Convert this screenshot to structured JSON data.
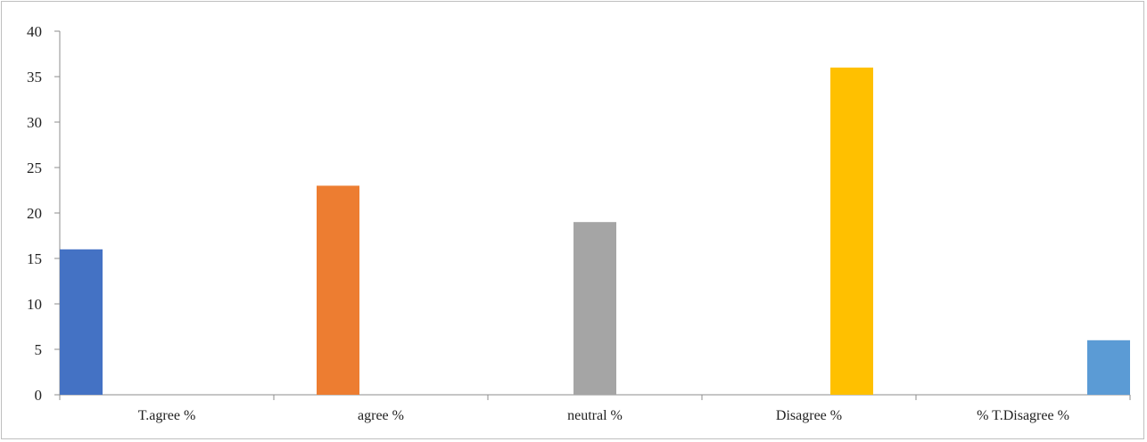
{
  "chart_data": {
    "type": "bar",
    "title": "",
    "xlabel": "",
    "ylabel": "",
    "ylim": [
      0,
      40
    ],
    "yticks": [
      0,
      5,
      10,
      15,
      20,
      25,
      30,
      35,
      40
    ],
    "grid": false,
    "legend": "none",
    "groups": [
      "T.agree %",
      "agree %",
      "neutral %",
      "Disagree %",
      "% T.Disagree %"
    ],
    "series": [
      {
        "color": "#4472C4",
        "values": [
          16,
          null,
          null,
          null,
          null
        ]
      },
      {
        "color": "#ED7D31",
        "values": [
          null,
          23,
          null,
          null,
          null
        ]
      },
      {
        "color": "#A5A5A5",
        "values": [
          null,
          null,
          19,
          null,
          null
        ]
      },
      {
        "color": "#FFC000",
        "values": [
          null,
          null,
          null,
          36,
          null
        ]
      },
      {
        "color": "#5B9BD5",
        "values": [
          null,
          null,
          null,
          null,
          6
        ]
      }
    ]
  }
}
